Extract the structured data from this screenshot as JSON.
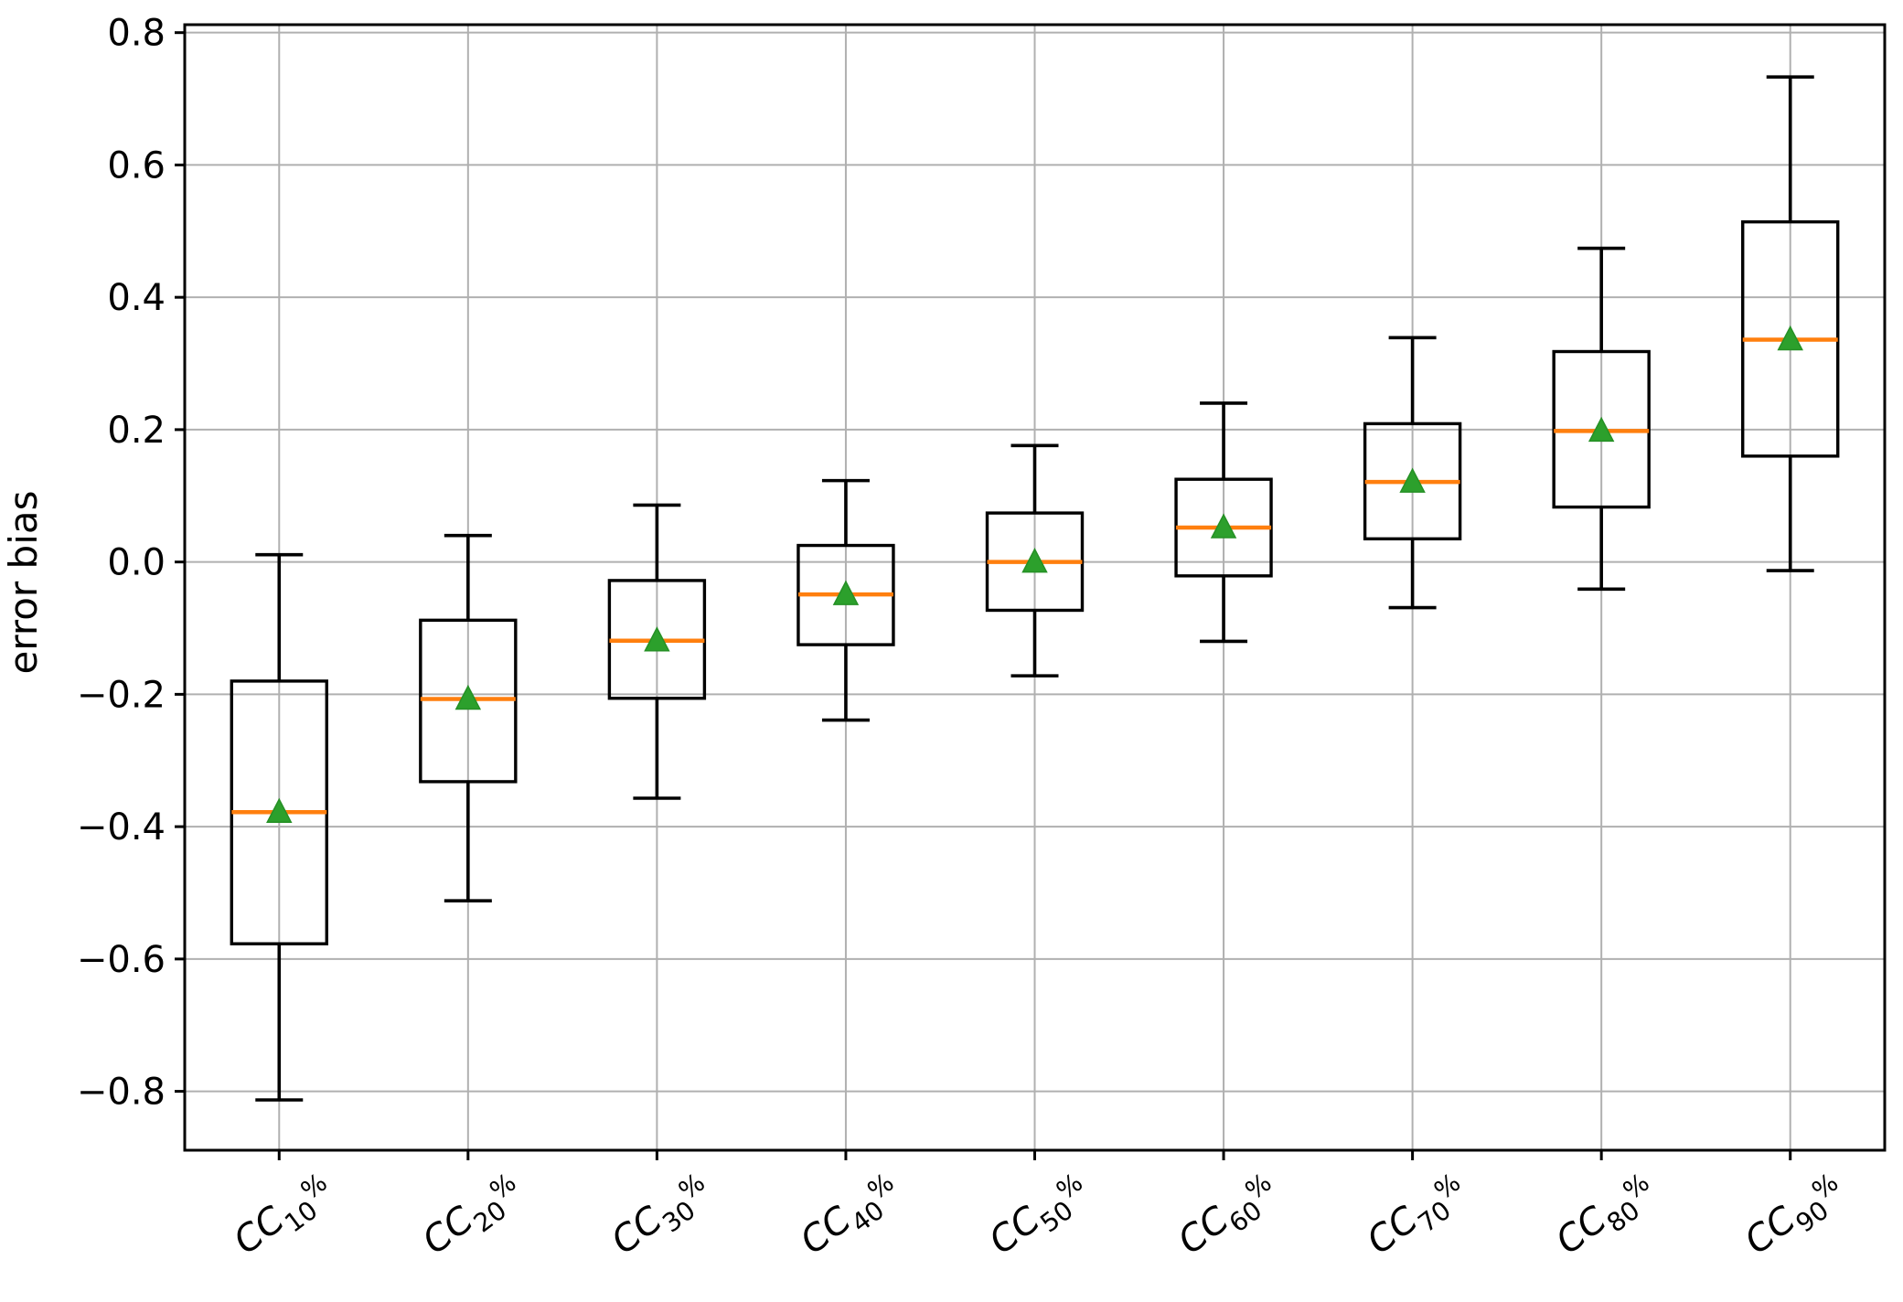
{
  "chart_data": {
    "type": "boxplot",
    "title": "",
    "xlabel": "",
    "ylabel": "error bias",
    "ylim": [
      -0.889,
      0.812
    ],
    "grid": true,
    "grid_axes": "both",
    "legend": "none",
    "yticks": [
      0.8,
      0.6,
      0.4,
      0.2,
      0.0,
      -0.2,
      -0.4,
      -0.6,
      -0.8
    ],
    "ytick_labels": [
      "0.8",
      "0.6",
      "0.4",
      "0.2",
      "0.0",
      "−0.2",
      "−0.4",
      "−0.6",
      "−0.8"
    ],
    "categories": [
      "CC10%",
      "CC20%",
      "CC30%",
      "CC40%",
      "CC50%",
      "CC60%",
      "CC70%",
      "CC80%",
      "CC90%"
    ],
    "series": [
      {
        "label": "CC10%",
        "whisker_low": -0.813,
        "q1": -0.577,
        "median": -0.378,
        "q3": -0.18,
        "whisker_high": 0.011,
        "mean": -0.378
      },
      {
        "label": "CC20%",
        "whisker_low": -0.512,
        "q1": -0.332,
        "median": -0.207,
        "q3": -0.088,
        "whisker_high": 0.04,
        "mean": -0.207
      },
      {
        "label": "CC30%",
        "whisker_low": -0.357,
        "q1": -0.206,
        "median": -0.119,
        "q3": -0.028,
        "whisker_high": 0.086,
        "mean": -0.119
      },
      {
        "label": "CC40%",
        "whisker_low": -0.239,
        "q1": -0.125,
        "median": -0.049,
        "q3": 0.025,
        "whisker_high": 0.123,
        "mean": -0.049
      },
      {
        "label": "CC50%",
        "whisker_low": -0.172,
        "q1": -0.073,
        "median": 0.0,
        "q3": 0.074,
        "whisker_high": 0.176,
        "mean": 0.0
      },
      {
        "label": "CC60%",
        "whisker_low": -0.12,
        "q1": -0.021,
        "median": 0.052,
        "q3": 0.125,
        "whisker_high": 0.24,
        "mean": 0.052
      },
      {
        "label": "CC70%",
        "whisker_low": -0.069,
        "q1": 0.035,
        "median": 0.121,
        "q3": 0.209,
        "whisker_high": 0.339,
        "mean": 0.121
      },
      {
        "label": "CC80%",
        "whisker_low": -0.041,
        "q1": 0.083,
        "median": 0.198,
        "q3": 0.318,
        "whisker_high": 0.474,
        "mean": 0.198
      },
      {
        "label": "CC90%",
        "whisker_low": -0.013,
        "q1": 0.16,
        "median": 0.336,
        "q3": 0.514,
        "whisker_high": 0.733,
        "mean": 0.336
      }
    ],
    "colors": {
      "box": "#000000",
      "whisker": "#000000",
      "median": "#ff7f0e",
      "mean_marker": "#2ca02c",
      "mean_marker_edge": "#259025",
      "grid": "#b0b0b0",
      "axis": "#000000",
      "tick_label": "#000000",
      "background": "#ffffff"
    }
  }
}
